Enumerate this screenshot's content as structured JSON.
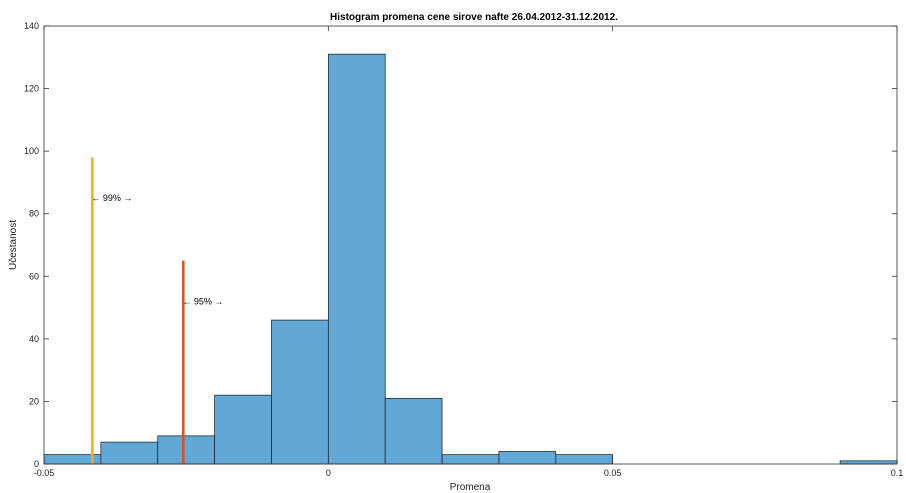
{
  "chart_data": {
    "type": "bar",
    "title": "Histogram promena cene sirove nafte 26.04.2012-31.12.2012.",
    "xlabel": "Promena",
    "ylabel": "Učestanost",
    "xlim": [
      -0.05,
      0.1
    ],
    "ylim": [
      0,
      140
    ],
    "x_ticks": [
      -0.05,
      0,
      0.05,
      0.1
    ],
    "x_tick_labels": [
      "-0.05",
      "0",
      "0.05",
      "0.1"
    ],
    "y_ticks": [
      0,
      20,
      40,
      60,
      80,
      100,
      120,
      140
    ],
    "y_tick_labels": [
      "0",
      "20",
      "40",
      "60",
      "80",
      "100",
      "120",
      "140"
    ],
    "bins": [
      {
        "x0": -0.05,
        "x1": -0.04,
        "value": 3
      },
      {
        "x0": -0.04,
        "x1": -0.03,
        "value": 7
      },
      {
        "x0": -0.03,
        "x1": -0.02,
        "value": 9
      },
      {
        "x0": -0.02,
        "x1": -0.01,
        "value": 22
      },
      {
        "x0": -0.01,
        "x1": 0.0,
        "value": 46
      },
      {
        "x0": 0.0,
        "x1": 0.01,
        "value": 131
      },
      {
        "x0": 0.01,
        "x1": 0.02,
        "value": 21
      },
      {
        "x0": 0.02,
        "x1": 0.03,
        "value": 3
      },
      {
        "x0": 0.03,
        "x1": 0.04,
        "value": 4
      },
      {
        "x0": 0.04,
        "x1": 0.05,
        "value": 3
      },
      {
        "x0": 0.09,
        "x1": 0.1,
        "value": 1
      }
    ],
    "reference_lines": [
      {
        "label": "← 99% →",
        "x": -0.0415,
        "height": 98,
        "label_y": 85,
        "color": "#EDB120"
      },
      {
        "label": "← 95% →",
        "x": -0.0255,
        "height": 65,
        "label_y": 52,
        "color": "#D95319"
      }
    ],
    "bar_color": "#61A8D7",
    "grid": false,
    "legend": "none"
  }
}
